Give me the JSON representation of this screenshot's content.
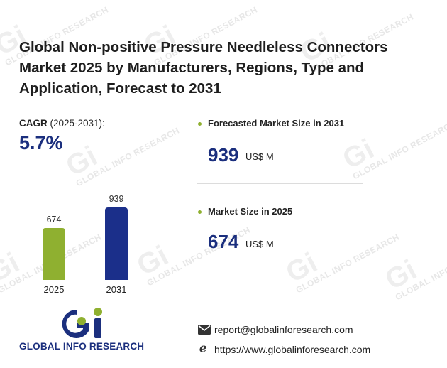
{
  "title": "Global Non-positive Pressure Needleless Connectors Market 2025 by Manufacturers, Regions, Type and Application, Forecast to 2031",
  "cagr": {
    "label_bold": "CAGR",
    "label_period": " (2025-2031):",
    "value": "5.7%"
  },
  "forecast": {
    "label": "Forecasted Market Size in 2031",
    "value": "939",
    "unit": "US$ M"
  },
  "current": {
    "label": "Market Size in 2025",
    "value": "674",
    "unit": "US$ M"
  },
  "chart_data": {
    "type": "bar",
    "categories": [
      "2025",
      "2031"
    ],
    "values": [
      674,
      939
    ],
    "value_labels": [
      "674",
      "939"
    ],
    "colors": [
      "#8fb030",
      "#1b2f8a"
    ],
    "ylim": [
      0,
      939
    ]
  },
  "brand": {
    "name": "GLOBAL INFO RESEARCH",
    "watermark_text": "GLOBAL INFO RESEARCH",
    "primary_color": "#1b2f7e",
    "accent_color": "#8fb030"
  },
  "contact": {
    "email": "report@globalinforesearch.com",
    "website": "https://www.globalinforesearch.com",
    "email_icon": "mail-icon",
    "web_icon": "browser-e-icon"
  }
}
